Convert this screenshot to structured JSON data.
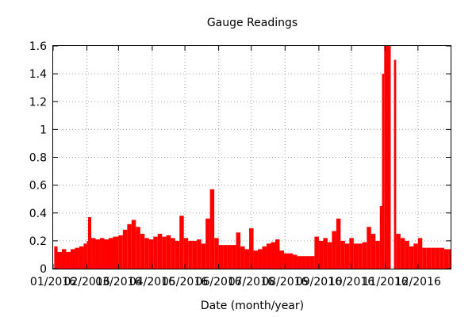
{
  "chart_data": {
    "type": "bar",
    "title": "Gauge Readings",
    "xlabel": "Date (month/year)",
    "ylabel": "",
    "ylim": [
      0,
      1.6
    ],
    "yticks": [
      "0",
      "0.2",
      "0.4",
      "0.6",
      "0.8",
      "1",
      "1.2",
      "1.4",
      "1.6"
    ],
    "xlim": [
      "2016-01-01",
      "2016-12-31"
    ],
    "xticks": [
      {
        "date": "2016-01-01",
        "label": "01/2016"
      },
      {
        "date": "2016-02-01",
        "label": "02/2016"
      },
      {
        "date": "2016-03-01",
        "label": "03/2016"
      },
      {
        "date": "2016-04-01",
        "label": "04/2016"
      },
      {
        "date": "2016-05-01",
        "label": "05/2016"
      },
      {
        "date": "2016-06-01",
        "label": "06/2016"
      },
      {
        "date": "2016-07-01",
        "label": "07/2016"
      },
      {
        "date": "2016-08-01",
        "label": "08/2016"
      },
      {
        "date": "2016-09-01",
        "label": "09/2016"
      },
      {
        "date": "2016-10-01",
        "label": "10/2016"
      },
      {
        "date": "2016-11-01",
        "label": "11/2016"
      },
      {
        "date": "2016-12-01",
        "label": "12/2016"
      }
    ],
    "grid": true,
    "bar_color": "#ff0000",
    "series": [
      {
        "points": [
          [
            "2016-01-02",
            0.16
          ],
          [
            "2016-01-05",
            0.12
          ],
          [
            "2016-01-09",
            0.14
          ],
          [
            "2016-01-13",
            0.12
          ],
          [
            "2016-01-17",
            0.14
          ],
          [
            "2016-01-21",
            0.15
          ],
          [
            "2016-01-25",
            0.16
          ],
          [
            "2016-01-29",
            0.18
          ],
          [
            "2016-02-01",
            0.2
          ],
          [
            "2016-02-02",
            0.37
          ],
          [
            "2016-02-05",
            0.22
          ],
          [
            "2016-02-09",
            0.21
          ],
          [
            "2016-02-13",
            0.22
          ],
          [
            "2016-02-17",
            0.21
          ],
          [
            "2016-02-21",
            0.22
          ],
          [
            "2016-02-25",
            0.23
          ],
          [
            "2016-03-01",
            0.24
          ],
          [
            "2016-03-05",
            0.28
          ],
          [
            "2016-03-09",
            0.32
          ],
          [
            "2016-03-13",
            0.35
          ],
          [
            "2016-03-17",
            0.3
          ],
          [
            "2016-03-21",
            0.25
          ],
          [
            "2016-03-25",
            0.22
          ],
          [
            "2016-03-29",
            0.21
          ],
          [
            "2016-04-02",
            0.23
          ],
          [
            "2016-04-06",
            0.25
          ],
          [
            "2016-04-10",
            0.23
          ],
          [
            "2016-04-14",
            0.24
          ],
          [
            "2016-04-18",
            0.22
          ],
          [
            "2016-04-22",
            0.2
          ],
          [
            "2016-04-26",
            0.38
          ],
          [
            "2016-04-30",
            0.22
          ],
          [
            "2016-05-04",
            0.2
          ],
          [
            "2016-05-08",
            0.2
          ],
          [
            "2016-05-12",
            0.21
          ],
          [
            "2016-05-16",
            0.18
          ],
          [
            "2016-05-20",
            0.36
          ],
          [
            "2016-05-24",
            0.57
          ],
          [
            "2016-05-28",
            0.22
          ],
          [
            "2016-06-01",
            0.17
          ],
          [
            "2016-06-05",
            0.17
          ],
          [
            "2016-06-09",
            0.17
          ],
          [
            "2016-06-13",
            0.17
          ],
          [
            "2016-06-17",
            0.26
          ],
          [
            "2016-06-21",
            0.16
          ],
          [
            "2016-06-25",
            0.14
          ],
          [
            "2016-06-29",
            0.29
          ],
          [
            "2016-07-03",
            0.13
          ],
          [
            "2016-07-07",
            0.14
          ],
          [
            "2016-07-11",
            0.16
          ],
          [
            "2016-07-15",
            0.18
          ],
          [
            "2016-07-19",
            0.19
          ],
          [
            "2016-07-23",
            0.21
          ],
          [
            "2016-07-27",
            0.13
          ],
          [
            "2016-07-31",
            0.11
          ],
          [
            "2016-08-04",
            0.11
          ],
          [
            "2016-08-08",
            0.1
          ],
          [
            "2016-08-12",
            0.09
          ],
          [
            "2016-08-16",
            0.09
          ],
          [
            "2016-08-20",
            0.09
          ],
          [
            "2016-08-24",
            0.09
          ],
          [
            "2016-08-28",
            0.23
          ],
          [
            "2016-09-01",
            0.2
          ],
          [
            "2016-09-05",
            0.22
          ],
          [
            "2016-09-09",
            0.19
          ],
          [
            "2016-09-13",
            0.27
          ],
          [
            "2016-09-17",
            0.36
          ],
          [
            "2016-09-21",
            0.2
          ],
          [
            "2016-09-25",
            0.18
          ],
          [
            "2016-09-29",
            0.22
          ],
          [
            "2016-10-03",
            0.18
          ],
          [
            "2016-10-07",
            0.18
          ],
          [
            "2016-10-11",
            0.19
          ],
          [
            "2016-10-15",
            0.3
          ],
          [
            "2016-10-19",
            0.25
          ],
          [
            "2016-10-23",
            0.2
          ],
          [
            "2016-10-27",
            0.45
          ],
          [
            "2016-10-29",
            1.4
          ],
          [
            "2016-10-31",
            1.6
          ],
          [
            "2016-11-02",
            1.6
          ],
          [
            "2016-11-06",
            0.0
          ],
          [
            "2016-11-09",
            1.5
          ],
          [
            "2016-11-11",
            0.25
          ],
          [
            "2016-11-15",
            0.22
          ],
          [
            "2016-11-19",
            0.2
          ],
          [
            "2016-11-23",
            0.16
          ],
          [
            "2016-11-27",
            0.18
          ],
          [
            "2016-12-01",
            0.22
          ],
          [
            "2016-12-05",
            0.15
          ],
          [
            "2016-12-09",
            0.15
          ],
          [
            "2016-12-13",
            0.15
          ],
          [
            "2016-12-17",
            0.15
          ],
          [
            "2016-12-21",
            0.15
          ],
          [
            "2016-12-25",
            0.14
          ],
          [
            "2016-12-29",
            0.14
          ]
        ]
      }
    ]
  }
}
